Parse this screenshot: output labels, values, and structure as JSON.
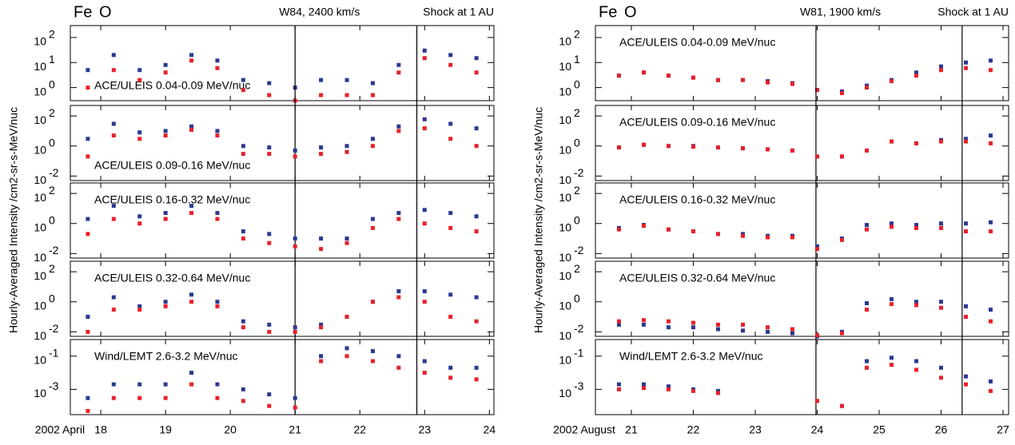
{
  "chart_data": [
    {
      "type": "scatter",
      "log_y": true,
      "panel_label": "ACE/ULEIS 0.04-0.09 MeV/nuc",
      "ylabel": "Hourly-Averaged Intensity /cm2-sr-s-MeV/nuc",
      "annotations": [
        {
          "text": "W84, 2400 km/s",
          "x": 21.0
        },
        {
          "text": "Shock at 1 AU",
          "x": 22.88
        }
      ],
      "xlim": [
        17.53,
        24.07
      ],
      "ylim": [
        0.3,
        300
      ],
      "yticks": [
        {
          "value": 100,
          "label": "10",
          "exponent": "2"
        },
        {
          "value": 10,
          "label": "10",
          "exponent": "1"
        },
        {
          "value": 1,
          "label": "10",
          "exponent": "0"
        }
      ],
      "x": [
        17.8,
        18.2,
        18.6,
        19.0,
        19.4,
        19.8,
        20.2,
        20.6,
        21.0,
        21.4,
        21.8,
        22.2,
        22.6,
        23.0,
        23.4,
        23.8
      ],
      "series": [
        {
          "name": "O",
          "color": "#2b3990",
          "values": [
            5,
            20,
            5,
            8,
            20,
            12,
            2,
            1.5,
            1,
            2,
            2,
            1.5,
            8,
            30,
            20,
            15
          ]
        },
        {
          "name": "Fe",
          "color": "#e8202a",
          "values": [
            1,
            5,
            2,
            4,
            12,
            6,
            0.8,
            0.5,
            0.3,
            0.5,
            0.5,
            0.5,
            4,
            15,
            8,
            4
          ]
        }
      ]
    },
    {
      "type": "scatter",
      "log_y": true,
      "panel_label": "ACE/ULEIS 0.09-0.16 MeV/nuc",
      "xlim": [
        17.53,
        24.07
      ],
      "ylim": [
        0.005,
        500
      ],
      "yticks": [
        {
          "value": 100,
          "label": "10",
          "exponent": "2"
        },
        {
          "value": 1,
          "label": "10",
          "exponent": "0"
        },
        {
          "value": 0.01,
          "label": "10",
          "exponent": "-2"
        }
      ],
      "x": [
        17.8,
        18.2,
        18.6,
        19.0,
        19.4,
        19.8,
        20.2,
        20.6,
        21.0,
        21.4,
        21.8,
        22.2,
        22.6,
        23.0,
        23.4,
        23.8
      ],
      "series": [
        {
          "name": "O",
          "color": "#2b3990",
          "values": [
            3,
            30,
            8,
            10,
            20,
            10,
            1,
            0.8,
            0.5,
            0.8,
            1,
            3,
            20,
            60,
            30,
            15
          ]
        },
        {
          "name": "Fe",
          "color": "#e8202a",
          "values": [
            0.2,
            5,
            3,
            5,
            12,
            5,
            0.3,
            0.3,
            0.2,
            0.3,
            0.4,
            1,
            10,
            15,
            3,
            1
          ]
        }
      ]
    },
    {
      "type": "scatter",
      "log_y": true,
      "panel_label": "ACE/ULEIS 0.16-0.32 MeV/nuc",
      "xlim": [
        17.53,
        24.07
      ],
      "ylim": [
        0.005,
        500
      ],
      "yticks": [
        {
          "value": 100,
          "label": "10",
          "exponent": "2"
        },
        {
          "value": 1,
          "label": "10",
          "exponent": "0"
        },
        {
          "value": 0.01,
          "label": "10",
          "exponent": "-2"
        }
      ],
      "x": [
        17.8,
        18.2,
        18.6,
        19.0,
        19.4,
        19.8,
        20.2,
        20.6,
        21.0,
        21.4,
        21.8,
        22.2,
        22.6,
        23.0,
        23.4,
        23.8
      ],
      "series": [
        {
          "name": "O",
          "color": "#2b3990",
          "values": [
            2,
            15,
            3,
            5,
            15,
            5,
            0.3,
            0.2,
            0.1,
            0.1,
            0.1,
            2,
            5,
            8,
            5,
            3
          ]
        },
        {
          "name": "Fe",
          "color": "#e8202a",
          "values": [
            0.2,
            2,
            1,
            2,
            5,
            2,
            0.1,
            0.05,
            0.03,
            0.02,
            0.05,
            0.5,
            2,
            1,
            0.5,
            0.3
          ]
        }
      ]
    },
    {
      "type": "scatter",
      "log_y": true,
      "panel_label": "ACE/ULEIS 0.32-0.64 MeV/nuc",
      "xlim": [
        17.53,
        24.07
      ],
      "ylim": [
        0.005,
        500
      ],
      "yticks": [
        {
          "value": 100,
          "label": "10",
          "exponent": "2"
        },
        {
          "value": 1,
          "label": "10",
          "exponent": "0"
        },
        {
          "value": 0.01,
          "label": "10",
          "exponent": "-2"
        }
      ],
      "x": [
        17.8,
        18.2,
        18.6,
        19.0,
        19.4,
        19.8,
        20.2,
        20.6,
        21.0,
        21.4,
        21.8,
        22.2,
        22.6,
        23.0,
        23.4,
        23.8
      ],
      "series": [
        {
          "name": "O",
          "color": "#2b3990",
          "values": [
            0.1,
            2,
            0.5,
            1,
            3,
            1,
            0.05,
            0.03,
            0.02,
            0.03,
            0.1,
            1,
            5,
            5,
            3,
            2
          ]
        },
        {
          "name": "Fe",
          "color": "#e8202a",
          "values": [
            0.01,
            0.3,
            0.3,
            0.5,
            1,
            0.5,
            0.02,
            0.01,
            0.01,
            0.02,
            0.1,
            1,
            2,
            1,
            0.1,
            0.05
          ]
        }
      ]
    },
    {
      "type": "scatter",
      "log_y": true,
      "panel_label": "Wind/LEMT 2.6-3.2 MeV/nuc",
      "xlim": [
        17.53,
        24.07
      ],
      "ylim": [
        3e-05,
        1
      ],
      "yticks": [
        {
          "value": 0.1,
          "label": "10",
          "exponent": "-1"
        },
        {
          "value": 0.001,
          "label": "10",
          "exponent": "-3"
        }
      ],
      "date_prefix": "2002 April",
      "xticks": [
        18,
        19,
        20,
        21,
        22,
        23,
        24
      ],
      "x": [
        17.8,
        18.2,
        18.6,
        19.0,
        19.4,
        19.8,
        20.2,
        20.6,
        21.0,
        21.4,
        21.8,
        22.2,
        22.6,
        23.0,
        23.4,
        23.8
      ],
      "series": [
        {
          "name": "O",
          "color": "#2b3990",
          "values": [
            0.0003,
            0.002,
            0.002,
            0.002,
            0.01,
            0.002,
            0.001,
            0.0005,
            0.0003,
            0.1,
            0.3,
            0.2,
            0.1,
            0.05,
            0.02,
            0.02
          ]
        },
        {
          "name": "Fe",
          "color": "#e8202a",
          "values": [
            5e-05,
            0.0003,
            0.0003,
            0.0003,
            0.002,
            0.0003,
            0.0002,
            0.0001,
            8e-05,
            0.05,
            0.1,
            0.05,
            0.02,
            0.01,
            0.005,
            0.004
          ]
        }
      ]
    },
    {
      "type": "scatter",
      "log_y": true,
      "panel_label": "ACE/ULEIS 0.04-0.09 MeV/nuc",
      "ylabel": "Hourly-Averaged Intensity /cm2-sr-s-MeV/nuc",
      "annotations": [
        {
          "text": "W81, 1900 km/s",
          "x": 23.98
        },
        {
          "text": "Shock at 1 AU",
          "x": 26.34
        }
      ],
      "xlim": [
        20.42,
        27.09
      ],
      "ylim": [
        0.3,
        300
      ],
      "yticks": [
        {
          "value": 100,
          "label": "10",
          "exponent": "2"
        },
        {
          "value": 10,
          "label": "10",
          "exponent": "1"
        },
        {
          "value": 1,
          "label": "10",
          "exponent": "0"
        }
      ],
      "x": [
        20.8,
        21.2,
        21.6,
        22.0,
        22.4,
        22.8,
        23.2,
        23.6,
        24.0,
        24.4,
        24.8,
        25.2,
        25.6,
        26.0,
        26.4,
        26.8
      ],
      "series": [
        {
          "name": "O",
          "color": "#2b3990",
          "values": [
            3,
            4,
            3,
            2.5,
            2,
            2,
            1.8,
            1.5,
            0.8,
            0.7,
            1.2,
            2,
            4,
            7,
            10,
            12
          ]
        },
        {
          "name": "Fe",
          "color": "#e8202a",
          "values": [
            3,
            4,
            3,
            2.5,
            2,
            2,
            1.6,
            1.4,
            0.8,
            0.6,
            1,
            1.8,
            3,
            5,
            6,
            5
          ]
        }
      ]
    },
    {
      "type": "scatter",
      "log_y": true,
      "panel_label": "ACE/ULEIS 0.09-0.16 MeV/nuc",
      "xlim": [
        20.42,
        27.09
      ],
      "ylim": [
        0.005,
        500
      ],
      "yticks": [
        {
          "value": 100,
          "label": "10",
          "exponent": "2"
        },
        {
          "value": 1,
          "label": "10",
          "exponent": "0"
        },
        {
          "value": 0.01,
          "label": "10",
          "exponent": "-2"
        }
      ],
      "x": [
        20.8,
        21.2,
        21.6,
        22.0,
        22.4,
        22.8,
        23.2,
        23.6,
        24.0,
        24.4,
        24.8,
        25.2,
        25.6,
        26.0,
        26.4,
        26.8
      ],
      "series": [
        {
          "name": "O",
          "color": "#2b3990",
          "values": [
            0.8,
            1.2,
            1,
            1,
            0.8,
            0.7,
            0.6,
            0.5,
            0.2,
            0.2,
            0.5,
            2,
            1.5,
            2.5,
            3,
            5
          ]
        },
        {
          "name": "Fe",
          "color": "#e8202a",
          "values": [
            0.8,
            1.2,
            1,
            0.9,
            0.8,
            0.7,
            0.6,
            0.5,
            0.2,
            0.2,
            0.5,
            2,
            1.5,
            2,
            2,
            1.5
          ]
        }
      ]
    },
    {
      "type": "scatter",
      "log_y": true,
      "panel_label": "ACE/ULEIS 0.16-0.32 MeV/nuc",
      "xlim": [
        20.42,
        27.09
      ],
      "ylim": [
        0.005,
        500
      ],
      "yticks": [
        {
          "value": 100,
          "label": "10",
          "exponent": "2"
        },
        {
          "value": 1,
          "label": "10",
          "exponent": "0"
        },
        {
          "value": 0.01,
          "label": "10",
          "exponent": "-2"
        }
      ],
      "x": [
        20.8,
        21.2,
        21.6,
        22.0,
        22.4,
        22.8,
        23.2,
        23.6,
        24.0,
        24.4,
        24.8,
        25.2,
        25.6,
        26.0,
        26.4,
        26.8
      ],
      "series": [
        {
          "name": "O",
          "color": "#2b3990",
          "values": [
            0.5,
            0.8,
            0.4,
            0.3,
            0.2,
            0.2,
            0.15,
            0.15,
            0.03,
            0.1,
            0.8,
            1,
            0.8,
            1,
            1,
            1.2
          ]
        },
        {
          "name": "Fe",
          "color": "#e8202a",
          "values": [
            0.4,
            0.7,
            0.4,
            0.3,
            0.2,
            0.15,
            0.12,
            0.12,
            0.02,
            0.08,
            0.4,
            0.6,
            0.5,
            0.5,
            0.3,
            0.3
          ]
        }
      ]
    },
    {
      "type": "scatter",
      "log_y": true,
      "panel_label": "ACE/ULEIS 0.32-0.64 MeV/nuc",
      "xlim": [
        20.42,
        27.09
      ],
      "ylim": [
        0.005,
        500
      ],
      "yticks": [
        {
          "value": 100,
          "label": "10",
          "exponent": "2"
        },
        {
          "value": 1,
          "label": "10",
          "exponent": "0"
        },
        {
          "value": 0.01,
          "label": "10",
          "exponent": "-2"
        }
      ],
      "x": [
        20.8,
        21.2,
        21.6,
        22.0,
        22.4,
        22.8,
        23.2,
        23.6,
        24.0,
        24.4,
        24.8,
        25.2,
        25.6,
        26.0,
        26.4,
        26.8
      ],
      "series": [
        {
          "name": "O",
          "color": "#2b3990",
          "values": [
            0.03,
            0.03,
            0.02,
            0.02,
            0.015,
            0.012,
            0.01,
            0.008,
            0.005,
            0.01,
            0.8,
            1.5,
            1,
            1,
            0.5,
            0.3
          ]
        },
        {
          "name": "Fe",
          "color": "#e8202a",
          "values": [
            0.05,
            0.06,
            0.05,
            0.04,
            0.03,
            0.03,
            0.02,
            0.015,
            0.006,
            0.008,
            0.3,
            0.7,
            0.6,
            0.4,
            0.1,
            0.05
          ]
        }
      ]
    },
    {
      "type": "scatter",
      "log_y": true,
      "panel_label": "Wind/LEMT 2.6-3.2 MeV/nuc",
      "xlim": [
        20.42,
        27.09
      ],
      "ylim": [
        3e-05,
        1
      ],
      "yticks": [
        {
          "value": 0.1,
          "label": "10",
          "exponent": "-1"
        },
        {
          "value": 0.001,
          "label": "10",
          "exponent": "-3"
        }
      ],
      "date_prefix": "2002 August",
      "xticks": [
        21,
        22,
        23,
        24,
        25,
        26,
        27
      ],
      "x": [
        20.8,
        21.2,
        21.6,
        22.0,
        22.4,
        22.8,
        23.2,
        23.6,
        24.0,
        24.4,
        24.8,
        25.2,
        25.6,
        26.0,
        26.4,
        26.8
      ],
      "series": [
        {
          "name": "O",
          "color": "#2b3990",
          "values": [
            0.002,
            0.002,
            0.0015,
            0.001,
            0.0008,
            null,
            null,
            null,
            0.0002,
            0.0001,
            0.05,
            0.08,
            0.05,
            0.02,
            0.006,
            0.003
          ]
        },
        {
          "name": "Fe",
          "color": "#e8202a",
          "values": [
            0.001,
            0.0012,
            0.001,
            0.0008,
            0.0006,
            null,
            null,
            null,
            0.0002,
            0.0001,
            0.02,
            0.03,
            0.015,
            0.005,
            0.002,
            0.0008
          ]
        }
      ]
    }
  ]
}
